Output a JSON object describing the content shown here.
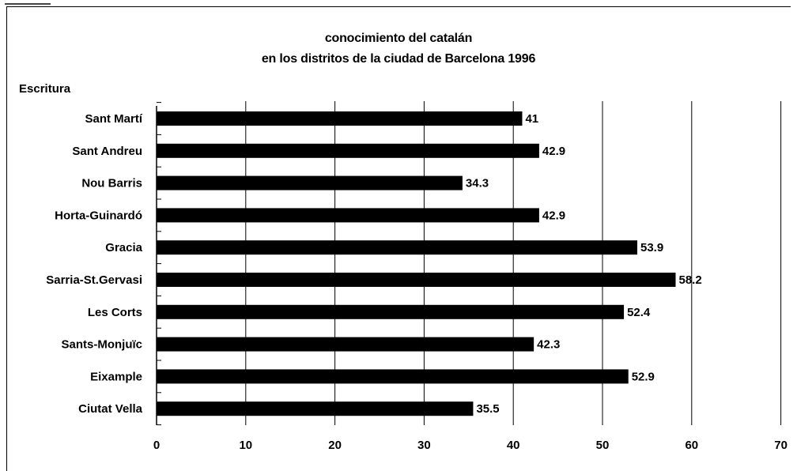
{
  "chart_data": {
    "type": "bar",
    "orientation": "horizontal",
    "title_line1": "conocimiento del catalán",
    "title_line2": "en los distritos de la ciudad de Barcelona 1996",
    "panel_label": "Escritura",
    "categories": [
      "Sant Martí",
      "Sant Andreu",
      "Nou Barris",
      "Horta-Guinardó",
      "Gracia",
      "Sarria-St.Gervasi",
      "Les Corts",
      "Sants-Monjuïc",
      "Eixample",
      "Ciutat Vella"
    ],
    "values": [
      41,
      42.9,
      34.3,
      42.9,
      53.9,
      58.2,
      52.4,
      42.3,
      52.9,
      35.5
    ],
    "value_labels": [
      "41",
      "42.9",
      "34.3",
      "42.9",
      "53.9",
      "58.2",
      "52.4",
      "42.3",
      "52.9",
      "35.5"
    ],
    "xlim": [
      0,
      70
    ],
    "xticks": [
      0,
      10,
      20,
      30,
      40,
      50,
      60,
      70
    ],
    "grid": "vertical",
    "legend": "none",
    "bar_color": "#000000"
  }
}
